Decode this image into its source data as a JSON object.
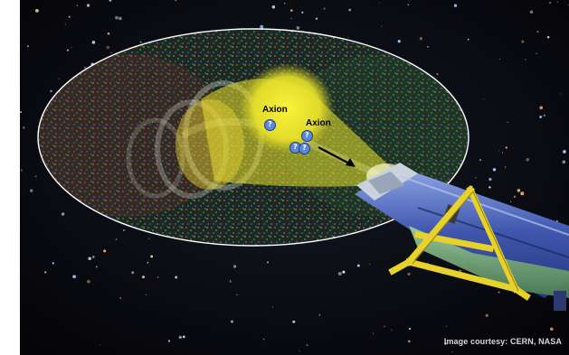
{
  "labels": {
    "axion_1": "Axion",
    "axion_2": "Axion"
  },
  "question_marks": [
    "?",
    "?",
    "?",
    "?"
  ],
  "credit": "Image courtesy: CERN, NASA",
  "colors": {
    "background": "#07080c",
    "beam": "#f2ec2a",
    "ellipse_outline": "#ffffff",
    "magnet_blue": "#4a62b8",
    "support_yellow": "#e8d22a",
    "particle_blue": "#5a8ad8"
  },
  "icons": [
    "question-mark-icon",
    "arrow-icon"
  ]
}
